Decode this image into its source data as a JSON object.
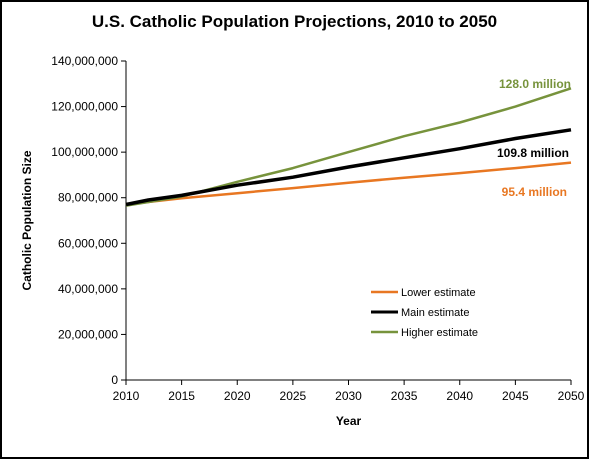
{
  "chart_data": {
    "type": "line",
    "title": "U.S. Catholic Population Projections, 2010 to 2050",
    "xlabel": "Year",
    "ylabel": "Catholic Population Size",
    "xlim": [
      2010,
      2050
    ],
    "ylim": [
      0,
      140000000
    ],
    "x_ticks": [
      "2010",
      "2015",
      "2020",
      "2025",
      "2030",
      "2035",
      "2040",
      "2045",
      "2050"
    ],
    "y_ticks": [
      "0",
      "20,000,000",
      "40,000,000",
      "60,000,000",
      "80,000,000",
      "100,000,000",
      "120,000,000",
      "140,000,000"
    ],
    "grid": false,
    "legend_position": "lower-right",
    "series": [
      {
        "name": "Lower estimate",
        "color": "#e87722",
        "x": [
          2010,
          2015,
          2020,
          2025,
          2030,
          2035,
          2040,
          2045,
          2050
        ],
        "values": [
          77000000,
          79800000,
          82000000,
          84200000,
          86600000,
          88800000,
          90800000,
          93000000,
          95400000
        ],
        "end_label": "95.4 million"
      },
      {
        "name": "Main estimate",
        "color": "#000000",
        "x": [
          2010,
          2012,
          2015,
          2020,
          2025,
          2030,
          2035,
          2040,
          2045,
          2050
        ],
        "values": [
          77000000,
          79000000,
          81000000,
          85500000,
          89000000,
          93500000,
          97500000,
          101500000,
          106000000,
          109800000
        ],
        "end_label": "109.8 million"
      },
      {
        "name": "Higher estimate",
        "color": "#77933c",
        "x": [
          2010,
          2015,
          2020,
          2025,
          2030,
          2035,
          2040,
          2045,
          2050
        ],
        "values": [
          76500000,
          80500000,
          87000000,
          93000000,
          100000000,
          107000000,
          113000000,
          120000000,
          128000000
        ],
        "end_label": "128.0 million"
      }
    ]
  }
}
